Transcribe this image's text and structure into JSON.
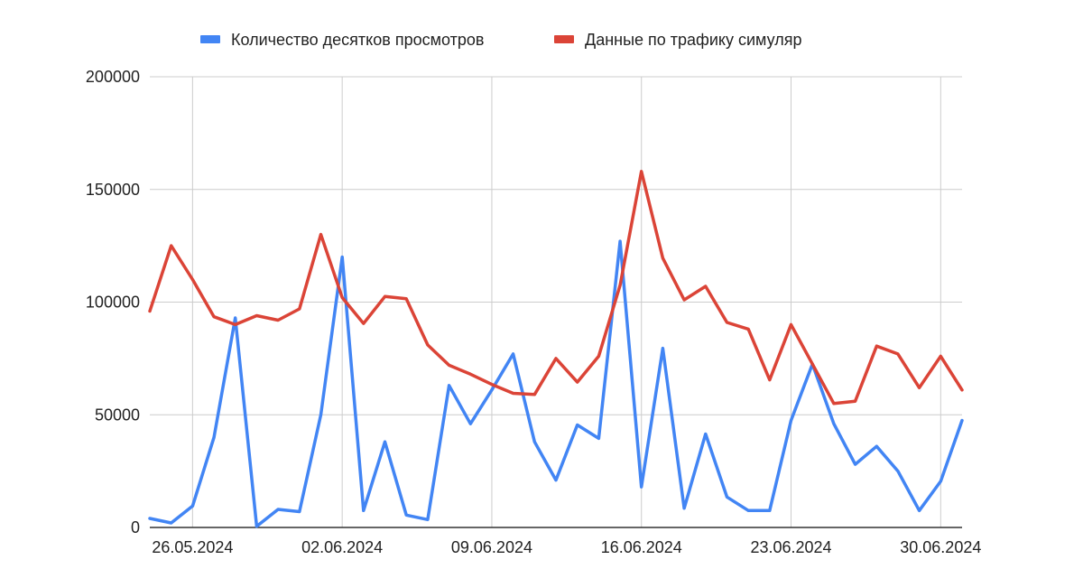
{
  "chart_data": {
    "type": "line",
    "title": "",
    "xlabel": "",
    "ylabel": "",
    "x_tick_labels": [
      "26.05.2024",
      "02.06.2024",
      "09.06.2024",
      "16.06.2024",
      "23.06.2024",
      "30.06.2024"
    ],
    "y_tick_labels": [
      "0",
      "50000",
      "100000",
      "150000",
      "200000"
    ],
    "ylim": [
      0,
      200000
    ],
    "grid": true,
    "legend_position": "top",
    "x": [
      "24.05.2024",
      "25.05.2024",
      "26.05.2024",
      "27.05.2024",
      "28.05.2024",
      "29.05.2024",
      "30.05.2024",
      "31.05.2024",
      "01.06.2024",
      "02.06.2024",
      "03.06.2024",
      "04.06.2024",
      "05.06.2024",
      "06.06.2024",
      "07.06.2024",
      "08.06.2024",
      "09.06.2024",
      "10.06.2024",
      "11.06.2024",
      "12.06.2024",
      "13.06.2024",
      "14.06.2024",
      "15.06.2024",
      "16.06.2024",
      "17.06.2024",
      "18.06.2024",
      "19.06.2024",
      "20.06.2024",
      "21.06.2024",
      "22.06.2024",
      "23.06.2024",
      "24.06.2024",
      "25.06.2024",
      "26.06.2024",
      "27.06.2024",
      "28.06.2024",
      "29.06.2024",
      "30.06.2024",
      "01.07.2024"
    ],
    "series": [
      {
        "name": "Количество десятков просмотров",
        "color": "#4285f4",
        "values": [
          4000,
          2000,
          9500,
          40000,
          93000,
          500,
          8000,
          7000,
          50000,
          120000,
          7500,
          38000,
          5500,
          3500,
          63000,
          46000,
          61000,
          77000,
          38000,
          21000,
          45500,
          39500,
          127000,
          18000,
          79500,
          8500,
          41500,
          13500,
          7500,
          7500,
          47500,
          72500,
          46000,
          28000,
          36000,
          25000,
          7500,
          20500,
          47500
        ]
      },
      {
        "name": "Данные по трафику симуляр",
        "color": "#db4437",
        "values": [
          96000,
          125000,
          110000,
          93500,
          90000,
          94000,
          92000,
          97000,
          130000,
          102000,
          90500,
          102500,
          101500,
          81000,
          72000,
          68000,
          63500,
          59500,
          59000,
          75000,
          64500,
          76000,
          107500,
          158000,
          119500,
          101000,
          107000,
          91000,
          88000,
          65500,
          90000,
          72500,
          55000,
          56000,
          80500,
          77000,
          62000,
          76000,
          61000
        ]
      }
    ]
  }
}
